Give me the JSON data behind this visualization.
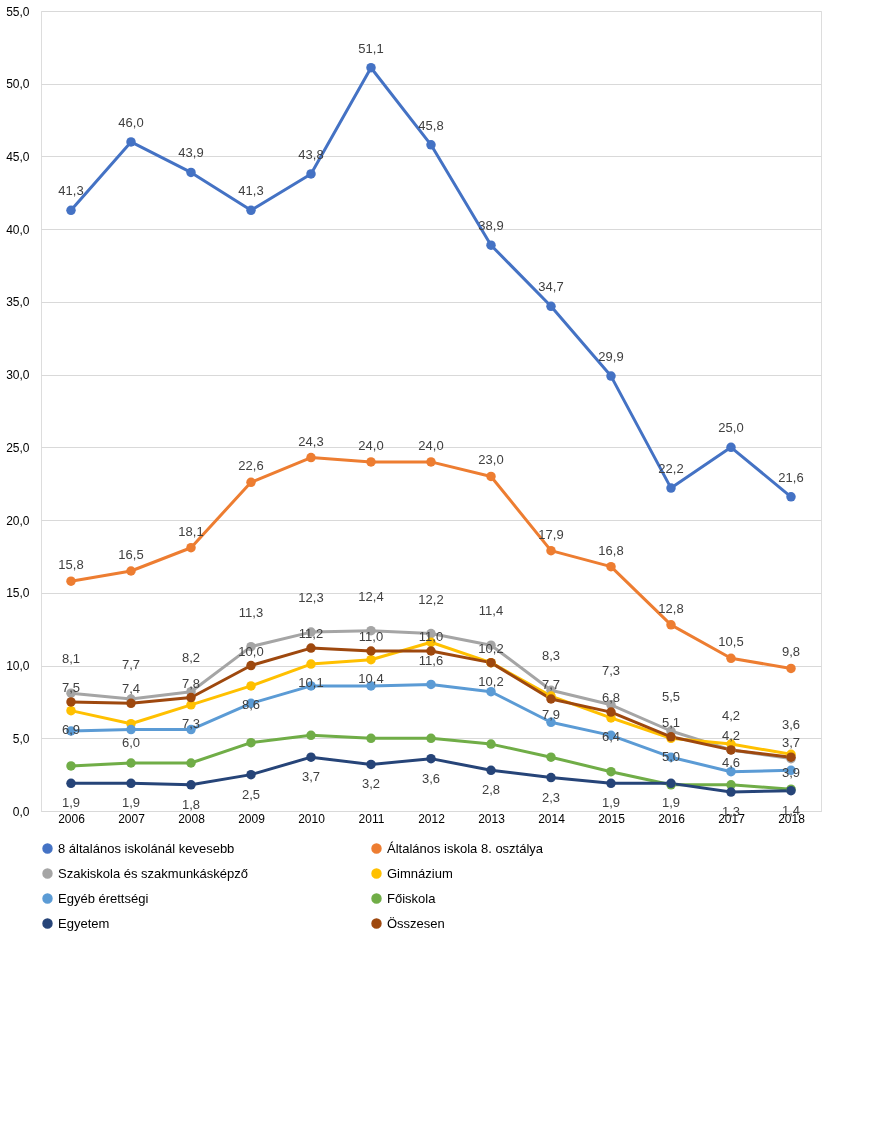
{
  "chart_data": {
    "type": "line",
    "categories": [
      "2006",
      "2007",
      "2008",
      "2009",
      "2010",
      "2011",
      "2012",
      "2013",
      "2014",
      "2015",
      "2016",
      "2017",
      "2018"
    ],
    "ylim": [
      0,
      55
    ],
    "yticks": [
      {
        "value": 0,
        "label": "0,0"
      },
      {
        "value": 5,
        "label": "5,0"
      },
      {
        "value": 10,
        "label": "10,0"
      },
      {
        "value": 15,
        "label": "15,0"
      },
      {
        "value": 20,
        "label": "20,0"
      },
      {
        "value": 25,
        "label": "25,0"
      },
      {
        "value": 30,
        "label": "30,0"
      },
      {
        "value": 35,
        "label": "35,0"
      },
      {
        "value": 40,
        "label": "40,0"
      },
      {
        "value": 45,
        "label": "45,0"
      },
      {
        "value": 50,
        "label": "50,0"
      },
      {
        "value": 55,
        "label": "55,0"
      }
    ],
    "grid": "y",
    "legend": "bottom",
    "marker": "circle",
    "line_style": "solid",
    "series": [
      {
        "name": "8 általános iskolánál kevesebb",
        "color": "#4472c4",
        "values": [
          41.3,
          46.0,
          43.9,
          41.3,
          43.8,
          51.1,
          45.8,
          38.9,
          34.7,
          29.9,
          22.2,
          25.0,
          21.6
        ],
        "value_labels": [
          "41,3",
          "46,0",
          "43,9",
          "41,3",
          "43,8",
          "51,1",
          "45,8",
          "38,9",
          "34,7",
          "29,9",
          "22,2",
          "25,0",
          "21,6"
        ]
      },
      {
        "name": "Általános iskola 8. osztálya",
        "color": "#ed7d31",
        "values": [
          15.8,
          16.5,
          18.1,
          22.6,
          24.3,
          24.0,
          24.0,
          23.0,
          17.9,
          16.8,
          12.8,
          10.5,
          9.8
        ],
        "value_labels": [
          "15,8",
          "16,5",
          "18,1",
          "22,6",
          "24,3",
          "24,0",
          "24,0",
          "23,0",
          "17,9",
          "16,8",
          "12,8",
          "10,5",
          "9,8"
        ]
      },
      {
        "name": "Szakiskola és szakmunkásképző",
        "color": "#a5a5a5",
        "values": [
          8.1,
          7.7,
          8.2,
          11.3,
          12.3,
          12.4,
          12.2,
          11.4,
          8.3,
          7.3,
          5.5,
          4.2,
          3.6
        ],
        "value_labels": [
          "8,1",
          "7,7",
          "8,2",
          "11,3",
          "12,3",
          "12,4",
          "12,2",
          "11,4",
          "8,3",
          "7,3",
          "5,5",
          "4,2",
          "3,6"
        ]
      },
      {
        "name": "Gimnázium",
        "color": "#ffc000",
        "values": [
          6.9,
          6.0,
          7.3,
          8.6,
          10.1,
          10.4,
          11.6,
          10.2,
          7.9,
          6.4,
          5.0,
          4.6,
          3.9
        ],
        "value_labels": [
          "6,9",
          "6,0",
          "7,3",
          "8,6",
          "10,1",
          "10,4",
          "11,6",
          "10,2",
          "7,9",
          "6,4",
          "5,0",
          "4,6",
          "3,9"
        ]
      },
      {
        "name": "Egyéb érettségi",
        "color": "#5b9bd5",
        "values": [
          5.5,
          5.6,
          5.6,
          7.4,
          8.6,
          8.6,
          8.7,
          8.2,
          6.1,
          5.2,
          3.7,
          2.7,
          2.8
        ]
      },
      {
        "name": "Főiskola",
        "color": "#70ad47",
        "values": [
          3.1,
          3.3,
          3.3,
          4.7,
          5.2,
          5.0,
          5.0,
          4.6,
          3.7,
          2.7,
          1.8,
          1.8,
          1.5
        ]
      },
      {
        "name": "Egyetem",
        "color": "#264478",
        "values": [
          1.9,
          1.9,
          1.8,
          2.5,
          3.7,
          3.2,
          3.6,
          2.8,
          2.3,
          1.9,
          1.9,
          1.3,
          1.4
        ],
        "value_labels": [
          "1,9",
          "1,9",
          "1,8",
          "2,5",
          "3,7",
          "3,2",
          "3,6",
          "2,8",
          "2,3",
          "1,9",
          "1,9",
          "1,3",
          "1,4"
        ]
      },
      {
        "name": "Összesen",
        "color": "#9e480e",
        "values": [
          7.5,
          7.4,
          7.8,
          10.0,
          11.2,
          11.0,
          11.0,
          10.2,
          7.7,
          6.8,
          5.1,
          4.2,
          3.7
        ],
        "value_labels": [
          "7,5",
          "7,4",
          "7,8",
          "10,0",
          "11,2",
          "11,0",
          "11,0",
          "10,2",
          "7,7",
          "6,8",
          "5,1",
          "4,2",
          "3,7"
        ]
      }
    ]
  }
}
